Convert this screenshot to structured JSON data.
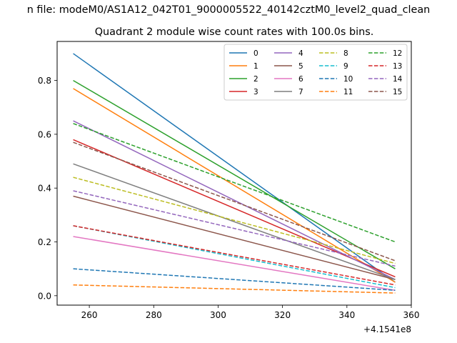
{
  "figure": {
    "suptitle": "n file: modeM0/AS1A12_042T01_9000005522_40142cztM0_level2_quad_clean"
  },
  "chart_data": {
    "type": "line",
    "title": "Quadrant 2 module wise count rates with 100.0s bins.",
    "xlabel": "",
    "ylabel": "",
    "x_offset_label": "+4.1541e8",
    "xlim": [
      250,
      360
    ],
    "ylim": [
      -0.035,
      0.945
    ],
    "xticks": [
      260,
      280,
      300,
      320,
      340,
      360
    ],
    "xtick_labels": [
      "260",
      "280",
      "300",
      "320",
      "340",
      "360"
    ],
    "yticks": [
      0.0,
      0.2,
      0.4,
      0.6,
      0.8
    ],
    "ytick_labels": [
      "0.0",
      "0.2",
      "0.4",
      "0.6",
      "0.8"
    ],
    "grid": false,
    "legend": {
      "placement": "top-right",
      "columns": 4
    },
    "x": [
      255,
      355
    ],
    "series": [
      {
        "name": "0",
        "values": [
          0.9,
          0.05
        ],
        "color": "#1f77b4",
        "dash": "solid"
      },
      {
        "name": "1",
        "values": [
          0.77,
          0.05
        ],
        "color": "#ff7f0e",
        "dash": "solid"
      },
      {
        "name": "2",
        "values": [
          0.8,
          0.1
        ],
        "color": "#2ca02c",
        "dash": "solid"
      },
      {
        "name": "3",
        "values": [
          0.58,
          0.07
        ],
        "color": "#d62728",
        "dash": "solid"
      },
      {
        "name": "4",
        "values": [
          0.65,
          0.06
        ],
        "color": "#9467bd",
        "dash": "solid"
      },
      {
        "name": "5",
        "values": [
          0.37,
          0.06
        ],
        "color": "#8c564b",
        "dash": "solid"
      },
      {
        "name": "6",
        "values": [
          0.22,
          0.02
        ],
        "color": "#e377c2",
        "dash": "solid"
      },
      {
        "name": "7",
        "values": [
          0.49,
          0.06
        ],
        "color": "#7f7f7f",
        "dash": "solid"
      },
      {
        "name": "8",
        "values": [
          0.44,
          0.12
        ],
        "color": "#bcbd22",
        "dash": "dashed"
      },
      {
        "name": "9",
        "values": [
          0.26,
          0.03
        ],
        "color": "#17becf",
        "dash": "dashed"
      },
      {
        "name": "10",
        "values": [
          0.1,
          0.02
        ],
        "color": "#1f77b4",
        "dash": "dashed"
      },
      {
        "name": "11",
        "values": [
          0.04,
          0.01
        ],
        "color": "#ff7f0e",
        "dash": "dashed"
      },
      {
        "name": "12",
        "values": [
          0.64,
          0.2
        ],
        "color": "#2ca02c",
        "dash": "dashed"
      },
      {
        "name": "13",
        "values": [
          0.26,
          0.04
        ],
        "color": "#d62728",
        "dash": "dashed"
      },
      {
        "name": "14",
        "values": [
          0.39,
          0.11
        ],
        "color": "#9467bd",
        "dash": "dashed"
      },
      {
        "name": "15",
        "values": [
          0.57,
          0.13
        ],
        "color": "#8c564b",
        "dash": "dashed"
      }
    ]
  }
}
